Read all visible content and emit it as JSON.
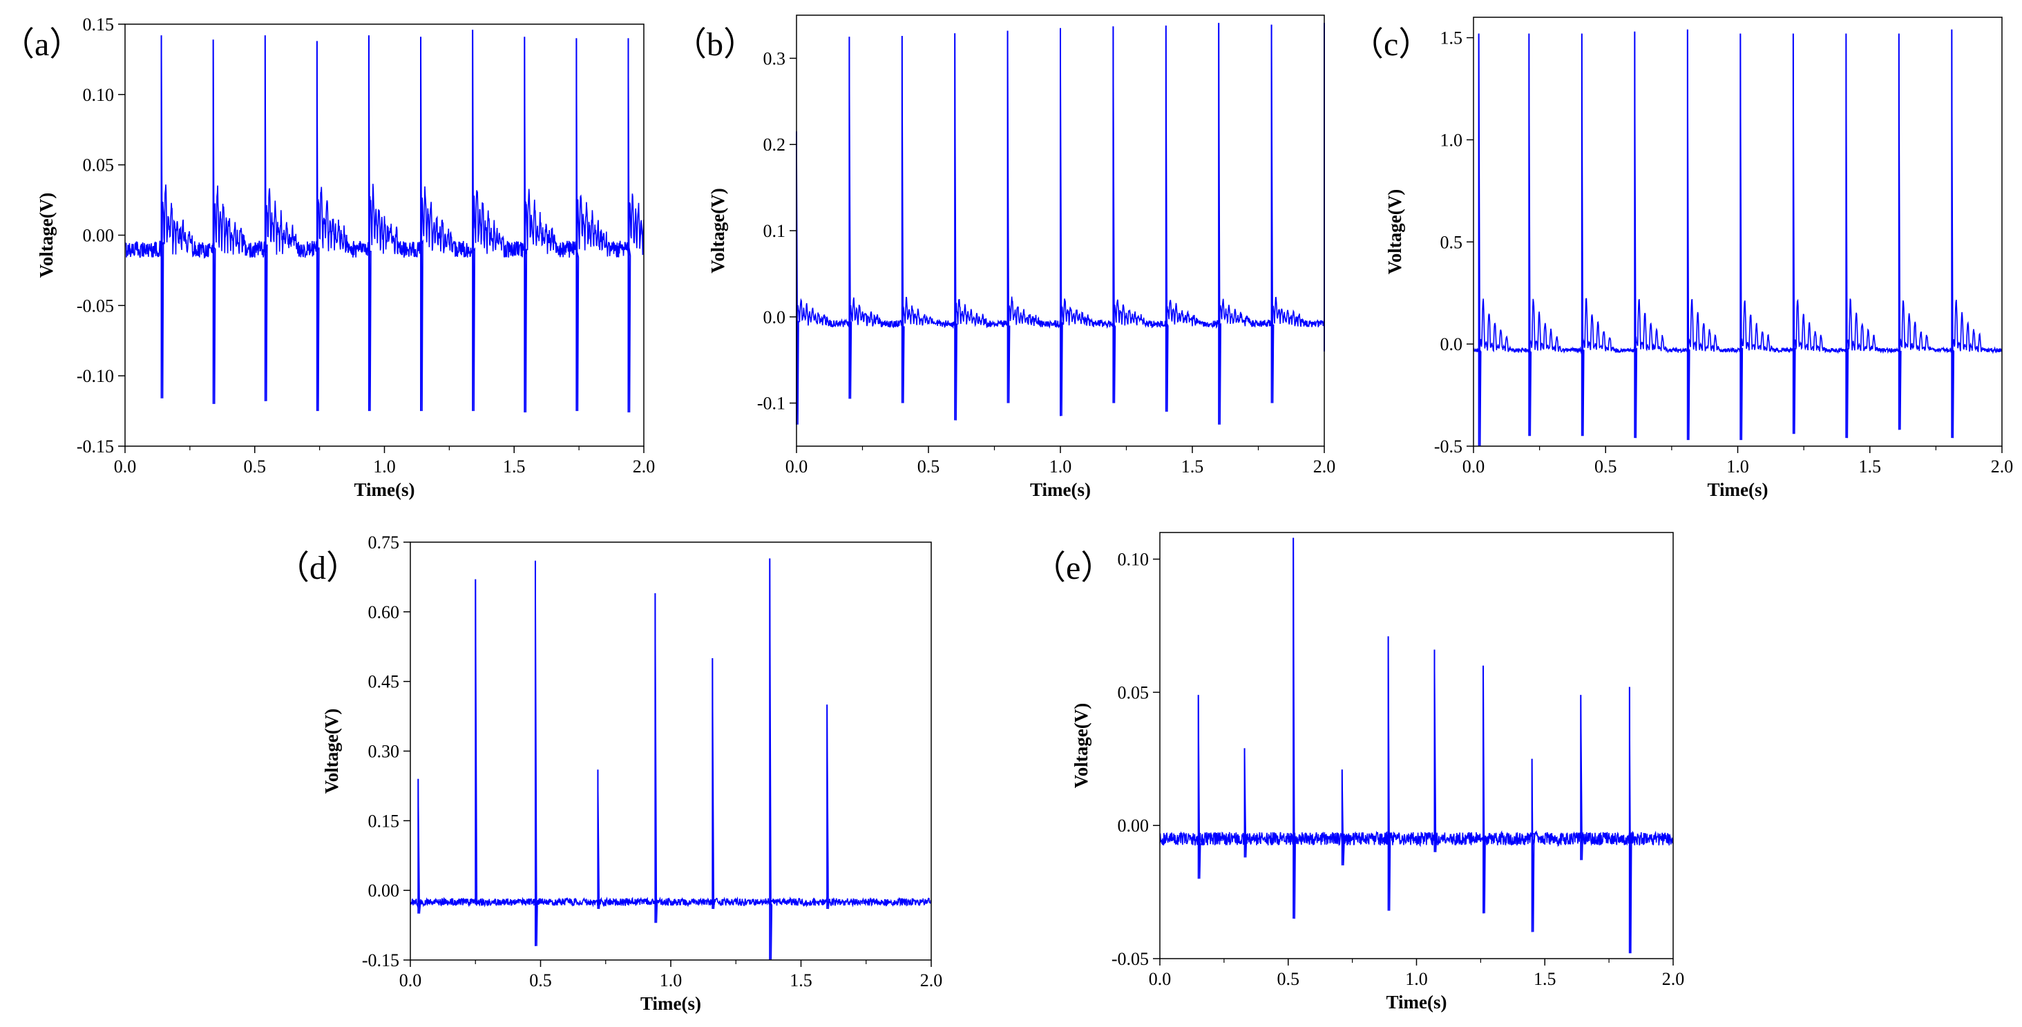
{
  "chart_data": [
    {
      "id": "a",
      "panel_label": "（a）",
      "type": "line",
      "xlabel": "Time(s)",
      "ylabel": "Voltage(V)",
      "xlim": [
        0.0,
        2.0
      ],
      "ylim": [
        -0.15,
        0.15
      ],
      "x_ticks": [
        "0.0",
        "0.5",
        "1.0",
        "1.5",
        "2.0"
      ],
      "y_ticks": [
        "-0.15",
        "-0.10",
        "-0.05",
        "0.00",
        "0.05",
        "0.10",
        "0.15"
      ],
      "series": [
        {
          "name": "voltage",
          "color": "#0000ff",
          "baseline": -0.01,
          "noise": 0.006,
          "spike_times": [
            0.14,
            0.34,
            0.54,
            0.74,
            0.94,
            1.14,
            1.34,
            1.54,
            1.74,
            1.94
          ],
          "spike_peaks": [
            0.142,
            0.139,
            0.142,
            0.138,
            0.142,
            0.141,
            0.146,
            0.141,
            0.14,
            0.14
          ],
          "spike_troughs": [
            -0.116,
            -0.12,
            -0.118,
            -0.125,
            -0.125,
            -0.125,
            -0.125,
            -0.126,
            -0.125,
            -0.126
          ],
          "ring_up": 0.04,
          "ring_down": -0.06
        }
      ]
    },
    {
      "id": "b",
      "panel_label": "（b）",
      "type": "line",
      "xlabel": "Time(s)",
      "ylabel": "Voltage(V)",
      "xlim": [
        0.0,
        2.0
      ],
      "ylim": [
        -0.15,
        0.35
      ],
      "x_ticks": [
        "0.0",
        "0.5",
        "1.0",
        "1.5",
        "2.0"
      ],
      "y_ticks": [
        "-0.1",
        "0.0",
        "0.1",
        "0.2",
        "0.3"
      ],
      "series": [
        {
          "name": "voltage",
          "color": "#0000ff",
          "baseline": -0.008,
          "noise": 0.004,
          "spike_times": [
            0.0,
            0.2,
            0.4,
            0.6,
            0.8,
            1.0,
            1.2,
            1.4,
            1.6,
            1.8,
            2.0
          ],
          "spike_peaks": [
            0.215,
            0.325,
            0.326,
            0.329,
            0.332,
            0.335,
            0.337,
            0.338,
            0.341,
            0.339,
            0.341
          ],
          "spike_troughs": [
            -0.125,
            -0.095,
            -0.1,
            -0.12,
            -0.1,
            -0.115,
            -0.1,
            -0.11,
            -0.125,
            -0.1,
            -0.04
          ],
          "ring_up": 0.025,
          "ring_down": -0.04
        }
      ]
    },
    {
      "id": "c",
      "panel_label": "（c）",
      "type": "line",
      "xlabel": "Time(s)",
      "ylabel": "Voltage(V)",
      "xlim": [
        0.0,
        2.0
      ],
      "ylim": [
        -0.5,
        1.6
      ],
      "x_ticks": [
        "0.0",
        "0.5",
        "1.0",
        "1.5",
        "2.0"
      ],
      "y_ticks": [
        "-0.5",
        "0.0",
        "0.5",
        "1.0",
        "1.5"
      ],
      "series": [
        {
          "name": "voltage",
          "color": "#0000ff",
          "baseline": -0.03,
          "noise": 0.01,
          "spike_times": [
            0.02,
            0.21,
            0.41,
            0.61,
            0.81,
            1.01,
            1.21,
            1.41,
            1.61,
            1.81
          ],
          "spike_peaks": [
            1.52,
            1.52,
            1.52,
            1.53,
            1.54,
            1.52,
            1.52,
            1.52,
            1.52,
            1.54
          ],
          "spike_troughs": [
            -0.5,
            -0.45,
            -0.45,
            -0.46,
            -0.47,
            -0.47,
            -0.44,
            -0.46,
            -0.42,
            -0.46
          ],
          "ring_up": 0.06,
          "ring_down": -0.35
        }
      ]
    },
    {
      "id": "d",
      "panel_label": "（d）",
      "type": "line",
      "xlabel": "Time(s)",
      "ylabel": "Voltage(V)",
      "xlim": [
        0.0,
        2.0
      ],
      "ylim": [
        -0.15,
        0.75
      ],
      "x_ticks": [
        "0.0",
        "0.5",
        "1.0",
        "1.5",
        "2.0"
      ],
      "y_ticks": [
        "-0.15",
        "0.00",
        "0.15",
        "0.30",
        "0.45",
        "0.60",
        "0.75"
      ],
      "series": [
        {
          "name": "voltage",
          "color": "#0000ff",
          "baseline": -0.025,
          "noise": 0.008,
          "spike_times": [
            0.03,
            0.25,
            0.48,
            0.72,
            0.94,
            1.16,
            1.38,
            1.6
          ],
          "spike_peaks": [
            0.24,
            0.67,
            0.71,
            0.26,
            0.64,
            0.5,
            0.715,
            0.4
          ],
          "spike_troughs": [
            -0.05,
            -0.03,
            -0.12,
            -0.04,
            -0.07,
            -0.04,
            -0.15,
            -0.04
          ],
          "ring_up": 0.0,
          "ring_down": 0.0
        }
      ]
    },
    {
      "id": "e",
      "panel_label": "（e）",
      "type": "line",
      "xlabel": "Time(s)",
      "ylabel": "Voltage(V)",
      "xlim": [
        0.0,
        2.0
      ],
      "ylim": [
        -0.05,
        0.11
      ],
      "x_ticks": [
        "0.0",
        "0.5",
        "1.0",
        "1.5",
        "2.0"
      ],
      "y_ticks": [
        "-0.05",
        "0.00",
        "0.05",
        "0.10"
      ],
      "series": [
        {
          "name": "voltage",
          "color": "#0000ff",
          "baseline": -0.005,
          "noise": 0.0025,
          "spike_times": [
            0.15,
            0.33,
            0.52,
            0.71,
            0.89,
            1.07,
            1.26,
            1.45,
            1.64,
            1.83
          ],
          "spike_peaks": [
            0.049,
            0.029,
            0.108,
            0.021,
            0.071,
            0.066,
            0.06,
            0.025,
            0.049,
            0.052
          ],
          "spike_troughs": [
            -0.02,
            -0.012,
            -0.035,
            -0.015,
            -0.032,
            -0.01,
            -0.033,
            -0.04,
            -0.013,
            -0.048
          ],
          "ring_up": 0.0,
          "ring_down": 0.0
        }
      ]
    }
  ]
}
